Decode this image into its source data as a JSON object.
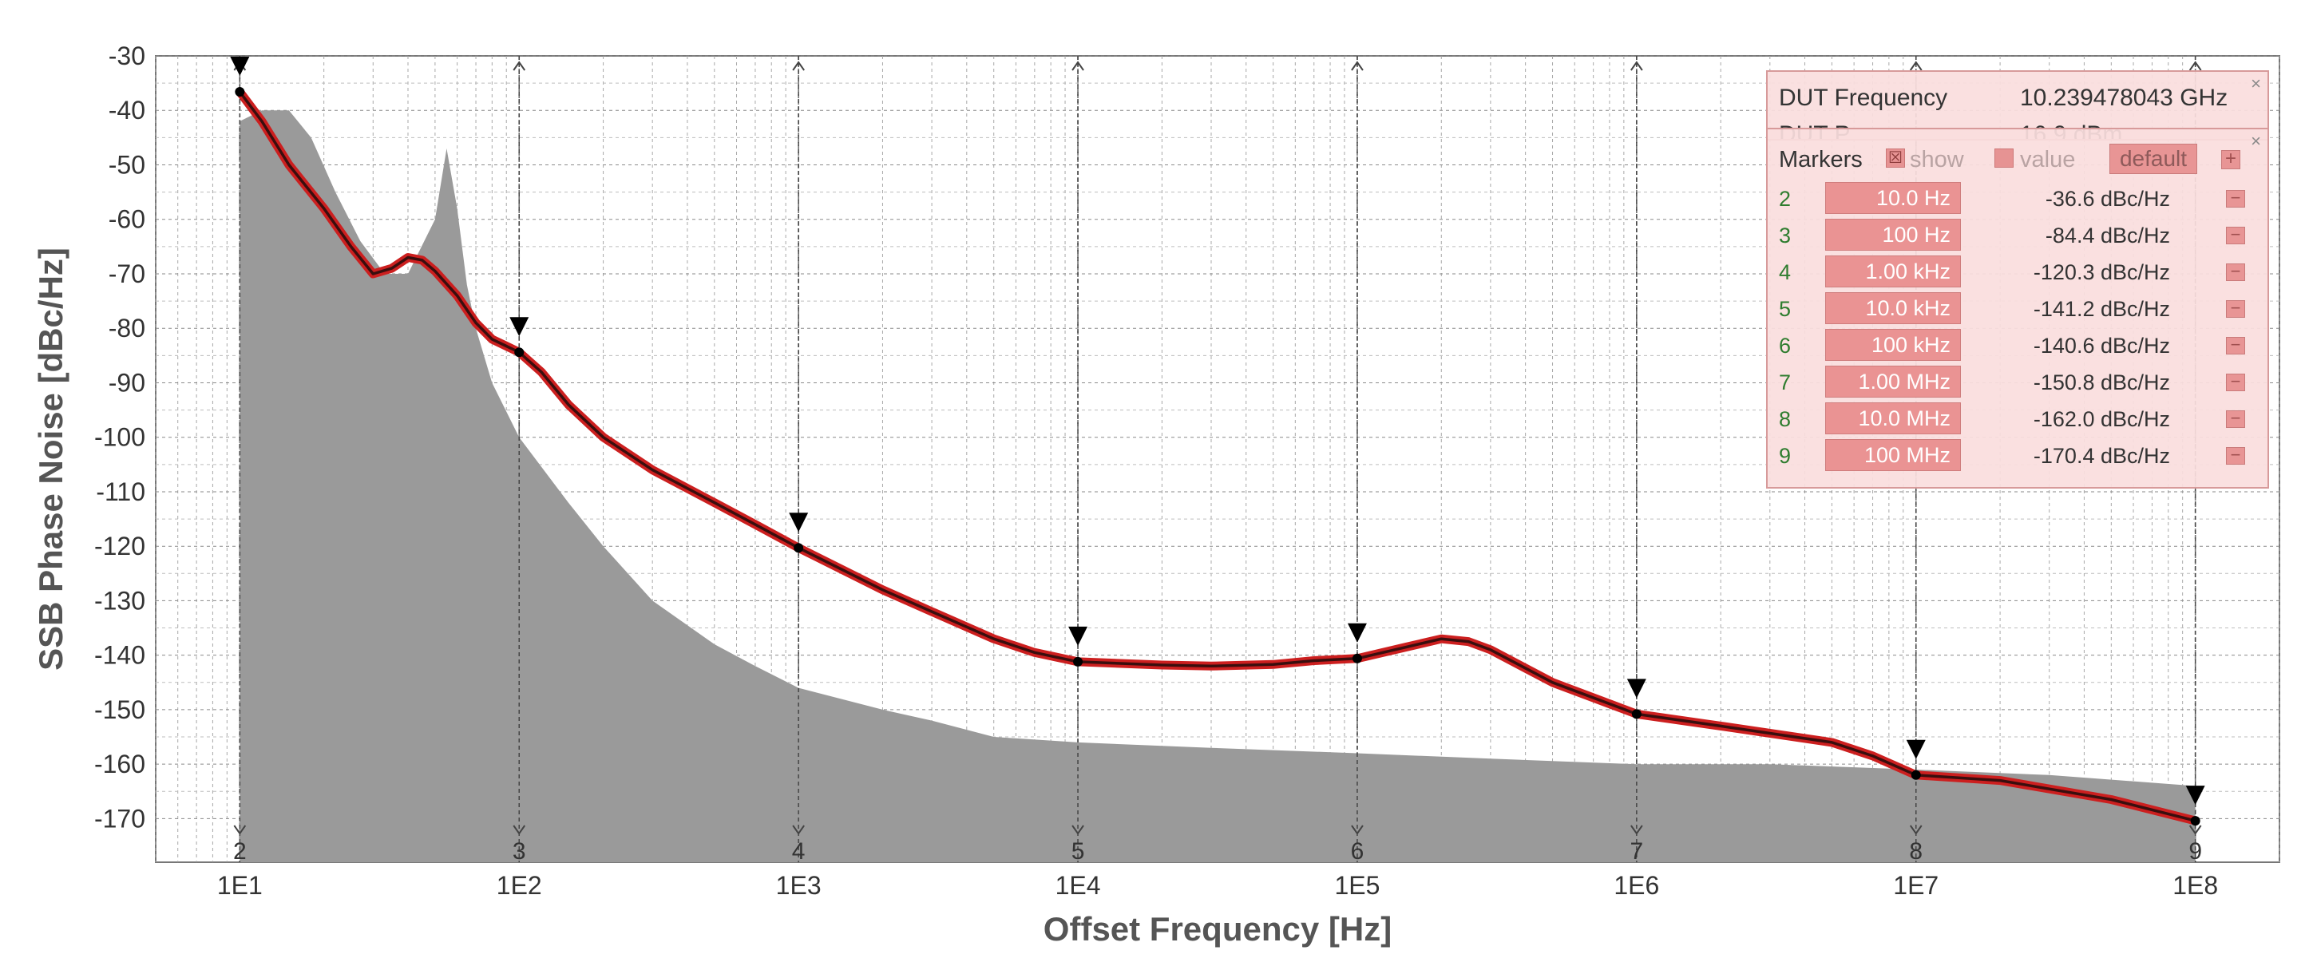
{
  "chart_data": {
    "type": "line",
    "title": "",
    "xlabel": "Offset Frequency [Hz]",
    "ylabel": "SSB Phase Noise [dBc/Hz]",
    "x_scale": "log",
    "xlim": [
      5,
      200000000
    ],
    "ylim": [
      -178,
      -30
    ],
    "x_ticks": [
      10,
      100,
      1000,
      10000,
      100000,
      1000000,
      10000000,
      100000000
    ],
    "x_tick_labels": [
      "1E1",
      "1E2",
      "1E3",
      "1E4",
      "1E5",
      "1E6",
      "1E7",
      "1E8"
    ],
    "y_ticks": [
      -30,
      -40,
      -50,
      -60,
      -70,
      -80,
      -90,
      -100,
      -110,
      -120,
      -130,
      -140,
      -150,
      -160,
      -170
    ],
    "y_tick_labels": [
      "-30",
      "-40",
      "-50",
      "-60",
      "-70",
      "-80",
      "-90",
      "-100",
      "-110",
      "-120",
      "-130",
      "-140",
      "-150",
      "-160",
      "-170"
    ],
    "grid": true,
    "series": [
      {
        "color": "#cc1f1f",
        "x": [
          10,
          12,
          15,
          20,
          25,
          30,
          35,
          40,
          45,
          50,
          60,
          70,
          80,
          100,
          120,
          150,
          200,
          300,
          500,
          700,
          1000,
          2000,
          3000,
          5000,
          7000,
          10000,
          20000,
          30000,
          50000,
          70000,
          100000,
          150000,
          200000,
          250000,
          300000,
          500000,
          1000000,
          2000000,
          5000000,
          7000000,
          10000000,
          20000000,
          50000000,
          100000000
        ],
        "y": [
          -36.6,
          -42,
          -50,
          -58,
          -65,
          -70,
          -69,
          -67,
          -67.5,
          -69.5,
          -74,
          -79,
          -82,
          -84.4,
          -88,
          -94,
          -100,
          -106,
          -112,
          -116,
          -120.3,
          -128,
          -132,
          -137,
          -139.5,
          -141.2,
          -141.8,
          -142,
          -141.7,
          -141,
          -140.6,
          -138.5,
          -137,
          -137.5,
          -139,
          -145,
          -150.8,
          -153,
          -156,
          -158.5,
          -162,
          -163,
          -166.5,
          -170.4
        ]
      },
      {
        "color": "#9a9a9a",
        "x": [
          10,
          12,
          15,
          18,
          22,
          27,
          33,
          40,
          50,
          55,
          60,
          65,
          70,
          80,
          100,
          150,
          200,
          300,
          500,
          700,
          1000,
          2000,
          3000,
          5000,
          10000,
          30000,
          100000,
          300000,
          1000000,
          3000000,
          10000000,
          30000000,
          100000000
        ],
        "y": [
          -42,
          -40,
          -40,
          -45,
          -55,
          -64,
          -70,
          -70,
          -60,
          -47,
          -58,
          -72,
          -80,
          -90,
          -100,
          -112,
          -120,
          -130,
          -138,
          -142,
          -146,
          -150,
          -152,
          -155,
          -156,
          -157,
          -158,
          -159,
          -160,
          -160,
          -161,
          -162,
          -164
        ]
      }
    ],
    "markers": [
      {
        "id": "2",
        "x": 10,
        "y": -36.6
      },
      {
        "id": "3",
        "x": 100,
        "y": -84.4
      },
      {
        "id": "4",
        "x": 1000,
        "y": -120.3
      },
      {
        "id": "5",
        "x": 10000,
        "y": -141.2
      },
      {
        "id": "6",
        "x": 100000,
        "y": -140.6
      },
      {
        "id": "7",
        "x": 1000000,
        "y": -150.8
      },
      {
        "id": "8",
        "x": 10000000,
        "y": -162.0
      },
      {
        "id": "9",
        "x": 100000000,
        "y": -170.4
      }
    ]
  },
  "dut_panel": {
    "freq_label": "DUT Frequency",
    "freq_value": "10.239478043 GHz",
    "power_label": "DUT P",
    "power_value": "16.9 dBm",
    "close": "×"
  },
  "markers_panel": {
    "title": "Markers",
    "show_label": "show",
    "show_checkbox": "☒",
    "value_label": "value",
    "default_label": "default",
    "add_label": "+",
    "close": "×",
    "delete_label": "−",
    "rows": [
      {
        "num": "2",
        "freq": "10.0 Hz",
        "value": "-36.6 dBc/Hz"
      },
      {
        "num": "3",
        "freq": "100 Hz",
        "value": "-84.4 dBc/Hz"
      },
      {
        "num": "4",
        "freq": "1.00 kHz",
        "value": "-120.3 dBc/Hz"
      },
      {
        "num": "5",
        "freq": "10.0 kHz",
        "value": "-141.2 dBc/Hz"
      },
      {
        "num": "6",
        "freq": "100 kHz",
        "value": "-140.6 dBc/Hz"
      },
      {
        "num": "7",
        "freq": "1.00 MHz",
        "value": "-150.8 dBc/Hz"
      },
      {
        "num": "8",
        "freq": "10.0 MHz",
        "value": "-162.0 dBc/Hz"
      },
      {
        "num": "9",
        "freq": "100 MHz",
        "value": "-170.4 dBc/Hz"
      }
    ]
  }
}
